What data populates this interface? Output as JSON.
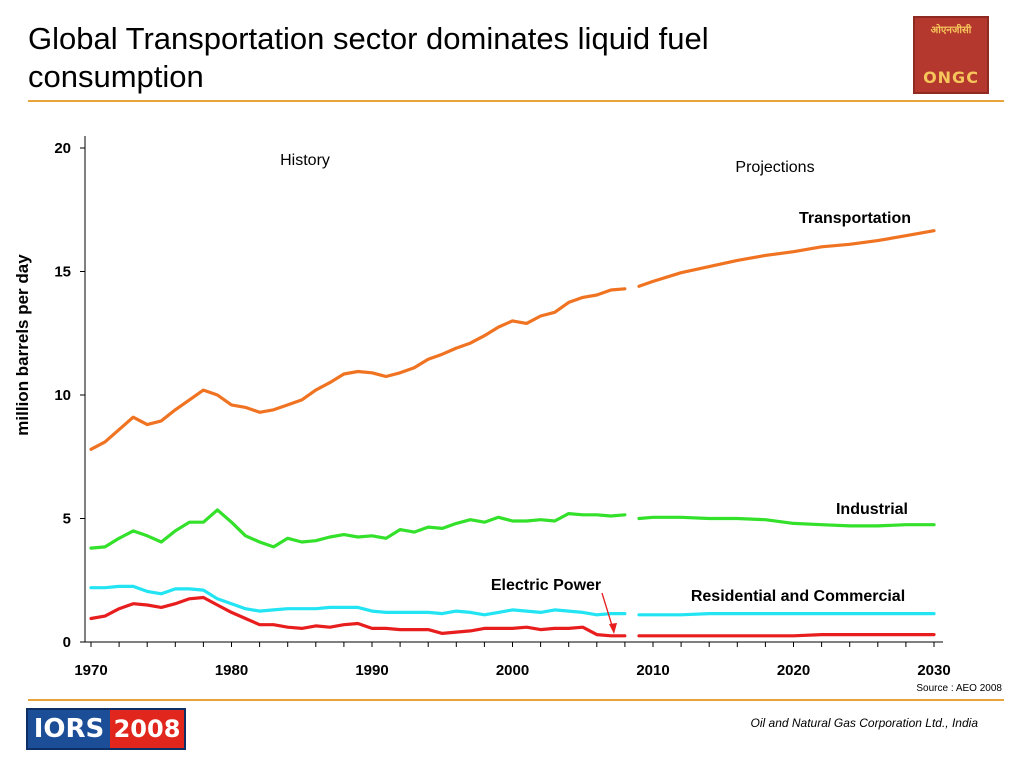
{
  "slide": {
    "title": "Global Transportation sector dominates liquid fuel consumption",
    "source": "Source : AEO 2008",
    "footer_company": "Oil and Natural Gas Corporation Ltd., India",
    "logo_hindi": "ओएनजीसी",
    "logo_text": "ONGC",
    "event_logo_part1": "IORS",
    "event_logo_part2": "2008",
    "colors": {
      "accent_rule": "#E8A33A",
      "logo_red": "#B5382E",
      "iors_blue": "#1B4E97",
      "iors_red": "#E0261D"
    }
  },
  "chart_data": {
    "type": "line",
    "title": "",
    "xlabel": "",
    "ylabel": "million barrels per day",
    "xlim": [
      1970,
      2030
    ],
    "ylim": [
      0,
      20
    ],
    "x_ticks": [
      1970,
      1980,
      1990,
      2000,
      2010,
      2020,
      2030
    ],
    "y_ticks": [
      0,
      5,
      10,
      15,
      20
    ],
    "annotations": {
      "history": "History",
      "projections": "Projections",
      "history_end_year": 2008
    },
    "series": [
      {
        "name": "Transportation",
        "color": "#F07321",
        "history": {
          "x": [
            1970,
            1971,
            1972,
            1973,
            1974,
            1975,
            1976,
            1977,
            1978,
            1979,
            1980,
            1981,
            1982,
            1983,
            1984,
            1985,
            1986,
            1987,
            1988,
            1989,
            1990,
            1991,
            1992,
            1993,
            1994,
            1995,
            1996,
            1997,
            1998,
            1999,
            2000,
            2001,
            2002,
            2003,
            2004,
            2005,
            2006,
            2007,
            2008
          ],
          "y": [
            7.8,
            8.1,
            8.6,
            9.1,
            8.8,
            8.95,
            9.4,
            9.8,
            10.2,
            10.0,
            9.6,
            9.5,
            9.3,
            9.4,
            9.6,
            9.8,
            10.2,
            10.5,
            10.85,
            10.95,
            10.9,
            10.75,
            10.9,
            11.1,
            11.45,
            11.65,
            11.9,
            12.1,
            12.4,
            12.75,
            13.0,
            12.9,
            13.2,
            13.35,
            13.75,
            13.95,
            14.05,
            14.25,
            14.3
          ]
        },
        "projection": {
          "x": [
            2009,
            2010,
            2012,
            2014,
            2016,
            2018,
            2020,
            2022,
            2024,
            2026,
            2028,
            2030
          ],
          "y": [
            14.4,
            14.6,
            14.95,
            15.2,
            15.45,
            15.65,
            15.8,
            16.0,
            16.1,
            16.25,
            16.45,
            16.65
          ]
        }
      },
      {
        "name": "Industrial",
        "color": "#33E02A",
        "history": {
          "x": [
            1970,
            1971,
            1972,
            1973,
            1974,
            1975,
            1976,
            1977,
            1978,
            1979,
            1980,
            1981,
            1982,
            1983,
            1984,
            1985,
            1986,
            1987,
            1988,
            1989,
            1990,
            1991,
            1992,
            1993,
            1994,
            1995,
            1996,
            1997,
            1998,
            1999,
            2000,
            2001,
            2002,
            2003,
            2004,
            2005,
            2006,
            2007,
            2008
          ],
          "y": [
            3.8,
            3.85,
            4.2,
            4.5,
            4.3,
            4.05,
            4.5,
            4.85,
            4.85,
            5.35,
            4.85,
            4.3,
            4.05,
            3.85,
            4.2,
            4.05,
            4.1,
            4.25,
            4.35,
            4.25,
            4.3,
            4.2,
            4.55,
            4.45,
            4.65,
            4.6,
            4.8,
            4.95,
            4.85,
            5.05,
            4.9,
            4.9,
            4.95,
            4.9,
            5.2,
            5.15,
            5.15,
            5.1,
            5.15
          ]
        },
        "projection": {
          "x": [
            2009,
            2010,
            2012,
            2014,
            2016,
            2018,
            2020,
            2022,
            2024,
            2026,
            2028,
            2030
          ],
          "y": [
            5.0,
            5.05,
            5.05,
            5.0,
            5.0,
            4.95,
            4.8,
            4.75,
            4.7,
            4.7,
            4.75,
            4.75
          ]
        }
      },
      {
        "name": "Residential and Commercial",
        "color": "#22E4F2",
        "history": {
          "x": [
            1970,
            1971,
            1972,
            1973,
            1974,
            1975,
            1976,
            1977,
            1978,
            1979,
            1980,
            1981,
            1982,
            1983,
            1984,
            1985,
            1986,
            1987,
            1988,
            1989,
            1990,
            1991,
            1992,
            1993,
            1994,
            1995,
            1996,
            1997,
            1998,
            1999,
            2000,
            2001,
            2002,
            2003,
            2004,
            2005,
            2006,
            2007,
            2008
          ],
          "y": [
            2.2,
            2.2,
            2.25,
            2.25,
            2.05,
            1.95,
            2.15,
            2.15,
            2.1,
            1.75,
            1.55,
            1.35,
            1.25,
            1.3,
            1.35,
            1.35,
            1.35,
            1.4,
            1.4,
            1.4,
            1.25,
            1.2,
            1.2,
            1.2,
            1.2,
            1.15,
            1.25,
            1.2,
            1.1,
            1.2,
            1.3,
            1.25,
            1.2,
            1.3,
            1.25,
            1.2,
            1.1,
            1.15,
            1.15
          ]
        },
        "projection": {
          "x": [
            2009,
            2010,
            2012,
            2014,
            2016,
            2018,
            2020,
            2022,
            2024,
            2026,
            2028,
            2030
          ],
          "y": [
            1.1,
            1.1,
            1.1,
            1.15,
            1.15,
            1.15,
            1.15,
            1.15,
            1.15,
            1.15,
            1.15,
            1.15
          ]
        }
      },
      {
        "name": "Electric Power",
        "color": "#E81E1E",
        "history": {
          "x": [
            1970,
            1971,
            1972,
            1973,
            1974,
            1975,
            1976,
            1977,
            1978,
            1979,
            1980,
            1981,
            1982,
            1983,
            1984,
            1985,
            1986,
            1987,
            1988,
            1989,
            1990,
            1991,
            1992,
            1993,
            1994,
            1995,
            1996,
            1997,
            1998,
            1999,
            2000,
            2001,
            2002,
            2003,
            2004,
            2005,
            2006,
            2007,
            2008
          ],
          "y": [
            0.95,
            1.05,
            1.35,
            1.55,
            1.5,
            1.4,
            1.55,
            1.75,
            1.8,
            1.5,
            1.2,
            0.95,
            0.7,
            0.7,
            0.6,
            0.55,
            0.65,
            0.6,
            0.7,
            0.75,
            0.55,
            0.55,
            0.5,
            0.5,
            0.5,
            0.35,
            0.4,
            0.45,
            0.55,
            0.55,
            0.55,
            0.6,
            0.5,
            0.55,
            0.55,
            0.6,
            0.3,
            0.25,
            0.25
          ]
        },
        "projection": {
          "x": [
            2009,
            2010,
            2012,
            2014,
            2016,
            2018,
            2020,
            2022,
            2024,
            2026,
            2028,
            2030
          ],
          "y": [
            0.25,
            0.25,
            0.25,
            0.25,
            0.25,
            0.25,
            0.25,
            0.3,
            0.3,
            0.3,
            0.3,
            0.3
          ]
        }
      }
    ]
  }
}
